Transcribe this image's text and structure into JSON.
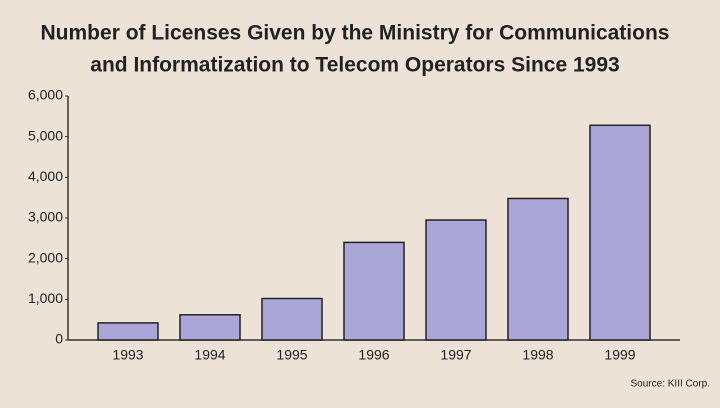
{
  "chart_data": {
    "type": "bar",
    "title": [
      "Number of Licenses Given by the Ministry for Communications",
      "and Informatization to Telecom Operators Since 1993"
    ],
    "source": "Source: KIII Corp.",
    "categories": [
      "1993",
      "1994",
      "1995",
      "1996",
      "1997",
      "1998",
      "1999"
    ],
    "values": [
      420,
      620,
      1020,
      2400,
      2950,
      3480,
      5280
    ],
    "color": "#aaa6d8",
    "ylim": [
      0,
      6000
    ],
    "yticks": [
      0,
      {
        "value": 1000,
        "label": "1,000"
      },
      {
        "value": 2000,
        "label": "2,000"
      },
      {
        "value": 3000,
        "label": "3,000"
      },
      {
        "value": 4000,
        "label": "4,000"
      },
      {
        "value": 5000,
        "label": "5,000"
      },
      {
        "value": 6000,
        "label": "6,000"
      }
    ],
    "grid": false
  }
}
